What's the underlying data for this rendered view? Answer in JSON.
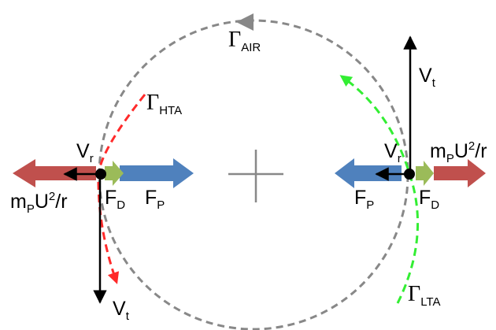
{
  "diagram": {
    "colors": {
      "circle": "#888888",
      "red_arrow": "#c0504d",
      "blue_arrow": "#4f81bd",
      "green_arrow": "#9bbb59",
      "hta_path": "#ff2a2a",
      "lta_path": "#33ee33",
      "vector": "#000000",
      "crosshair": "#888888"
    },
    "labels": {
      "gamma": "Γ",
      "air_sub": "AIR",
      "hta_sub": "HTA",
      "lta_sub": "LTA",
      "V": "V",
      "r_sub": "r",
      "t_sub": "t",
      "F": "F",
      "D_sub": "D",
      "P_sub": "P",
      "m": "m",
      "U": "U",
      "squared": "2",
      "per_r": "/r"
    }
  }
}
